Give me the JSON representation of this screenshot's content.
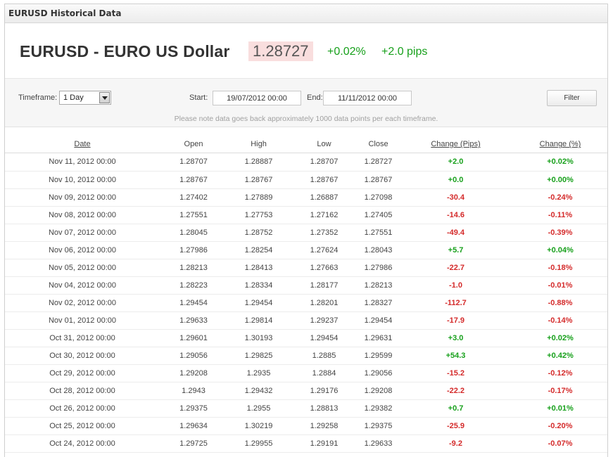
{
  "panel": {
    "header": "EURUSD Historical Data"
  },
  "summary": {
    "title": "EURUSD - EURO US Dollar",
    "price": "1.28727",
    "change_pct": "+0.02%",
    "change_pips": "+2.0 pips"
  },
  "filter": {
    "timeframe_label": "Timeframe:",
    "timeframe_value": "1 Day",
    "start_label": "Start:",
    "start_value": "19/07/2012 00:00",
    "end_label": "End:",
    "end_value": "11/11/2012 00:00",
    "filter_button": "Filter",
    "note": "Please note data goes back approximately 1000 data points per each timeframe."
  },
  "colors": {
    "positive": "#17a01b",
    "negative": "#d42a2a",
    "price_bg": "#f9dede"
  },
  "table": {
    "headers": [
      "Date",
      "Open",
      "High",
      "Low",
      "Close",
      "Change (Pips)",
      "Change (%)"
    ],
    "rows": [
      [
        "Nov 11, 2012 00:00",
        "1.28707",
        "1.28887",
        "1.28707",
        "1.28727",
        "+2.0",
        "+0.02%"
      ],
      [
        "Nov 10, 2012 00:00",
        "1.28767",
        "1.28767",
        "1.28767",
        "1.28767",
        "+0.0",
        "+0.00%"
      ],
      [
        "Nov 09, 2012 00:00",
        "1.27402",
        "1.27889",
        "1.26887",
        "1.27098",
        "-30.4",
        "-0.24%"
      ],
      [
        "Nov 08, 2012 00:00",
        "1.27551",
        "1.27753",
        "1.27162",
        "1.27405",
        "-14.6",
        "-0.11%"
      ],
      [
        "Nov 07, 2012 00:00",
        "1.28045",
        "1.28752",
        "1.27352",
        "1.27551",
        "-49.4",
        "-0.39%"
      ],
      [
        "Nov 06, 2012 00:00",
        "1.27986",
        "1.28254",
        "1.27624",
        "1.28043",
        "+5.7",
        "+0.04%"
      ],
      [
        "Nov 05, 2012 00:00",
        "1.28213",
        "1.28413",
        "1.27663",
        "1.27986",
        "-22.7",
        "-0.18%"
      ],
      [
        "Nov 04, 2012 00:00",
        "1.28223",
        "1.28334",
        "1.28177",
        "1.28213",
        "-1.0",
        "-0.01%"
      ],
      [
        "Nov 02, 2012 00:00",
        "1.29454",
        "1.29454",
        "1.28201",
        "1.28327",
        "-112.7",
        "-0.88%"
      ],
      [
        "Nov 01, 2012 00:00",
        "1.29633",
        "1.29814",
        "1.29237",
        "1.29454",
        "-17.9",
        "-0.14%"
      ],
      [
        "Oct 31, 2012 00:00",
        "1.29601",
        "1.30193",
        "1.29454",
        "1.29631",
        "+3.0",
        "+0.02%"
      ],
      [
        "Oct 30, 2012 00:00",
        "1.29056",
        "1.29825",
        "1.2885",
        "1.29599",
        "+54.3",
        "+0.42%"
      ],
      [
        "Oct 29, 2012 00:00",
        "1.29208",
        "1.2935",
        "1.2884",
        "1.29056",
        "-15.2",
        "-0.12%"
      ],
      [
        "Oct 28, 2012 00:00",
        "1.2943",
        "1.29432",
        "1.29176",
        "1.29208",
        "-22.2",
        "-0.17%"
      ],
      [
        "Oct 26, 2012 00:00",
        "1.29375",
        "1.2955",
        "1.28813",
        "1.29382",
        "+0.7",
        "+0.01%"
      ],
      [
        "Oct 25, 2012 00:00",
        "1.29634",
        "1.30219",
        "1.29258",
        "1.29375",
        "-25.9",
        "-0.20%"
      ],
      [
        "Oct 24, 2012 00:00",
        "1.29725",
        "1.29955",
        "1.29191",
        "1.29633",
        "-9.2",
        "-0.07%"
      ]
    ]
  }
}
